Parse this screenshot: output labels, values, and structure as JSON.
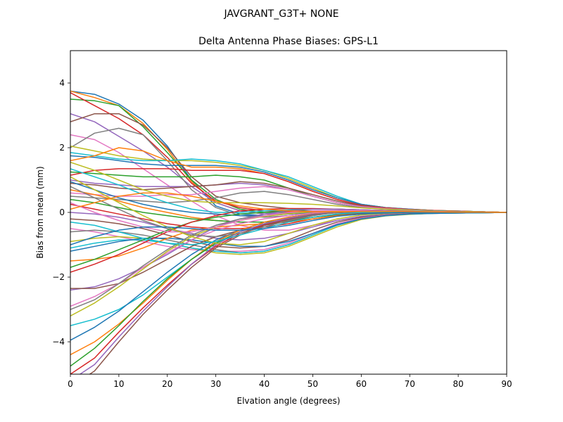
{
  "figure": {
    "suptitle": "JAVGRANT_G3T+   NONE"
  },
  "chart_data": {
    "type": "line",
    "title": "Delta Antenna Phase Biases: GPS-L1",
    "xlabel": "Elvation angle (degrees)",
    "ylabel": "Bias from mean (mm)",
    "xlim": [
      0,
      90
    ],
    "ylim": [
      -5,
      5
    ],
    "xticks": [
      0,
      10,
      20,
      30,
      40,
      50,
      60,
      70,
      80,
      90
    ],
    "yticks": [
      -4,
      -2,
      0,
      2,
      4
    ],
    "xtick_labels": [
      "0",
      "10",
      "20",
      "30",
      "40",
      "50",
      "60",
      "70",
      "80",
      "90"
    ],
    "ytick_labels": [
      "−4",
      "−2",
      "0",
      "2",
      "4"
    ],
    "grid": false,
    "legend": false,
    "x": [
      0,
      5,
      10,
      15,
      20,
      25,
      30,
      35,
      40,
      45,
      50,
      55,
      60,
      65,
      70,
      75,
      80,
      85,
      90
    ],
    "colors": [
      "#1f77b4",
      "#ff7f0e",
      "#2ca02c",
      "#d62728",
      "#9467bd",
      "#8c564b",
      "#e377c2",
      "#7f7f7f",
      "#bcbd22",
      "#17becf"
    ],
    "series": [
      {
        "values": [
          3.75,
          3.65,
          3.35,
          2.85,
          2.05,
          1.0,
          0.2,
          -0.05,
          -0.1,
          -0.05,
          0.0,
          0.02,
          0.05,
          0.05,
          0.04,
          0.03,
          0.02,
          0.01,
          0.0
        ]
      },
      {
        "values": [
          3.75,
          3.55,
          3.3,
          2.75,
          1.95,
          0.95,
          0.3,
          0.05,
          -0.05,
          -0.05,
          0.0,
          0.02,
          0.04,
          0.05,
          0.04,
          0.03,
          0.02,
          0.01,
          0.0
        ]
      },
      {
        "values": [
          3.5,
          3.45,
          3.3,
          2.65,
          1.85,
          1.0,
          0.4,
          0.1,
          0.0,
          0.0,
          0.02,
          0.04,
          0.05,
          0.05,
          0.04,
          0.03,
          0.02,
          0.01,
          0.0
        ]
      },
      {
        "values": [
          3.7,
          3.3,
          2.9,
          2.4,
          1.7,
          0.9,
          0.35,
          0.15,
          0.05,
          0.02,
          0.03,
          0.05,
          0.06,
          0.05,
          0.04,
          0.03,
          0.02,
          0.01,
          0.0
        ]
      },
      {
        "values": [
          3.05,
          2.8,
          2.35,
          1.9,
          1.4,
          0.8,
          0.3,
          0.05,
          -0.05,
          -0.02,
          0.02,
          0.04,
          0.05,
          0.05,
          0.04,
          0.03,
          0.02,
          0.01,
          0.0
        ]
      },
      {
        "values": [
          2.8,
          3.05,
          3.05,
          2.7,
          2.0,
          1.1,
          0.5,
          0.3,
          0.2,
          0.12,
          0.1,
          0.1,
          0.08,
          0.06,
          0.05,
          0.04,
          0.02,
          0.01,
          0.0
        ]
      },
      {
        "values": [
          2.4,
          2.25,
          1.85,
          1.35,
          0.85,
          0.35,
          -0.1,
          -0.4,
          -0.55,
          -0.55,
          -0.4,
          -0.25,
          -0.15,
          -0.1,
          -0.05,
          -0.03,
          -0.02,
          -0.01,
          0.0
        ]
      },
      {
        "values": [
          2.0,
          2.45,
          2.6,
          2.4,
          1.6,
          0.7,
          0.15,
          -0.1,
          -0.15,
          -0.1,
          -0.02,
          0.03,
          0.05,
          0.05,
          0.04,
          0.03,
          0.02,
          0.01,
          0.0
        ]
      },
      {
        "values": [
          2.05,
          1.9,
          1.75,
          1.65,
          1.6,
          1.6,
          1.55,
          1.45,
          1.3,
          1.05,
          0.75,
          0.45,
          0.25,
          0.15,
          0.1,
          0.06,
          0.04,
          0.02,
          0.0
        ]
      },
      {
        "values": [
          1.85,
          1.75,
          1.65,
          1.6,
          1.6,
          1.65,
          1.6,
          1.5,
          1.3,
          1.1,
          0.8,
          0.5,
          0.25,
          0.15,
          0.1,
          0.06,
          0.04,
          0.02,
          0.0
        ]
      },
      {
        "values": [
          1.75,
          1.7,
          1.6,
          1.5,
          1.45,
          1.45,
          1.45,
          1.4,
          1.25,
          1.0,
          0.7,
          0.45,
          0.25,
          0.15,
          0.1,
          0.06,
          0.04,
          0.02,
          0.0
        ]
      },
      {
        "values": [
          1.6,
          1.75,
          2.0,
          1.9,
          1.6,
          1.4,
          1.4,
          1.35,
          1.2,
          0.95,
          0.65,
          0.4,
          0.22,
          0.14,
          0.09,
          0.06,
          0.04,
          0.02,
          0.0
        ]
      },
      {
        "values": [
          1.25,
          1.2,
          1.15,
          1.1,
          1.1,
          1.1,
          1.15,
          1.1,
          1.0,
          0.75,
          0.5,
          0.3,
          0.18,
          0.12,
          0.08,
          0.05,
          0.03,
          0.02,
          0.0
        ]
      },
      {
        "values": [
          1.15,
          1.3,
          1.35,
          1.35,
          1.35,
          1.3,
          1.3,
          1.3,
          1.2,
          0.95,
          0.65,
          0.4,
          0.22,
          0.14,
          0.09,
          0.06,
          0.04,
          0.02,
          0.0
        ]
      },
      {
        "values": [
          1.0,
          0.9,
          0.85,
          0.8,
          0.8,
          0.8,
          0.85,
          0.9,
          0.85,
          0.7,
          0.5,
          0.3,
          0.18,
          0.12,
          0.08,
          0.05,
          0.03,
          0.02,
          0.0
        ]
      },
      {
        "values": [
          0.9,
          0.85,
          0.75,
          0.7,
          0.75,
          0.8,
          0.85,
          0.95,
          0.9,
          0.75,
          0.55,
          0.35,
          0.2,
          0.12,
          0.08,
          0.05,
          0.03,
          0.02,
          0.0
        ]
      },
      {
        "values": [
          0.6,
          0.55,
          0.5,
          0.5,
          0.55,
          0.55,
          0.65,
          0.75,
          0.8,
          0.7,
          0.5,
          0.3,
          0.18,
          0.12,
          0.08,
          0.05,
          0.03,
          0.02,
          0.0
        ]
      },
      {
        "values": [
          0.5,
          0.45,
          0.4,
          0.35,
          0.3,
          0.35,
          0.45,
          0.6,
          0.65,
          0.55,
          0.4,
          0.25,
          0.15,
          0.1,
          0.07,
          0.05,
          0.03,
          0.02,
          0.0
        ]
      },
      {
        "values": [
          1.55,
          1.3,
          1.0,
          0.7,
          0.5,
          0.35,
          0.3,
          0.3,
          0.3,
          0.28,
          0.25,
          0.2,
          0.14,
          0.1,
          0.07,
          0.05,
          0.03,
          0.02,
          0.0
        ]
      },
      {
        "values": [
          1.35,
          1.1,
          0.85,
          0.55,
          0.3,
          0.1,
          0.0,
          0.0,
          0.05,
          0.08,
          0.1,
          0.1,
          0.08,
          0.06,
          0.05,
          0.04,
          0.02,
          0.01,
          0.0
        ]
      },
      {
        "values": [
          0.95,
          0.7,
          0.45,
          0.25,
          0.1,
          0.0,
          -0.05,
          -0.1,
          -0.1,
          -0.05,
          0.0,
          0.03,
          0.05,
          0.05,
          0.04,
          0.03,
          0.02,
          0.01,
          0.0
        ]
      },
      {
        "values": [
          0.7,
          0.55,
          0.35,
          0.15,
          0.0,
          -0.15,
          -0.25,
          -0.3,
          -0.3,
          -0.25,
          -0.15,
          -0.05,
          0.0,
          0.02,
          0.02,
          0.02,
          0.01,
          0.01,
          0.0
        ]
      },
      {
        "values": [
          0.4,
          0.3,
          0.15,
          0.0,
          -0.1,
          -0.2,
          -0.25,
          -0.3,
          -0.3,
          -0.25,
          -0.15,
          -0.08,
          -0.03,
          0.0,
          0.01,
          0.01,
          0.01,
          0.0,
          0.0
        ]
      },
      {
        "values": [
          0.25,
          0.1,
          -0.05,
          -0.2,
          -0.35,
          -0.45,
          -0.5,
          -0.5,
          -0.45,
          -0.35,
          -0.2,
          -0.1,
          -0.05,
          -0.02,
          0.0,
          0.0,
          0.0,
          0.0,
          0.0
        ]
      },
      {
        "values": [
          0.0,
          -0.05,
          -0.15,
          -0.3,
          -0.5,
          -0.65,
          -0.8,
          -0.85,
          -0.8,
          -0.65,
          -0.45,
          -0.25,
          -0.12,
          -0.06,
          -0.03,
          -0.02,
          -0.01,
          -0.01,
          0.0
        ]
      },
      {
        "values": [
          -0.2,
          -0.25,
          -0.35,
          -0.5,
          -0.7,
          -0.9,
          -1.05,
          -1.1,
          -1.05,
          -0.85,
          -0.55,
          -0.3,
          -0.15,
          -0.08,
          -0.04,
          -0.02,
          -0.01,
          -0.01,
          0.0
        ]
      },
      {
        "values": [
          -0.5,
          -0.6,
          -0.75,
          -0.9,
          -1.05,
          -1.15,
          -1.2,
          -1.2,
          -1.15,
          -0.95,
          -0.65,
          -0.35,
          -0.18,
          -0.09,
          -0.05,
          -0.03,
          -0.02,
          -0.01,
          0.0
        ]
      },
      {
        "values": [
          -0.6,
          -0.55,
          -0.6,
          -0.7,
          -0.85,
          -1.0,
          -1.15,
          -1.25,
          -1.2,
          -1.0,
          -0.7,
          -0.4,
          -0.2,
          -0.1,
          -0.05,
          -0.03,
          -0.02,
          -0.01,
          0.0
        ]
      },
      {
        "values": [
          -0.9,
          -0.8,
          -0.75,
          -0.8,
          -0.95,
          -1.1,
          -1.25,
          -1.3,
          -1.25,
          -1.05,
          -0.75,
          -0.45,
          -0.22,
          -0.11,
          -0.06,
          -0.03,
          -0.02,
          -0.01,
          0.0
        ]
      },
      {
        "values": [
          -1.1,
          -0.95,
          -0.85,
          -0.85,
          -0.95,
          -1.1,
          -1.2,
          -1.25,
          -1.2,
          -1.0,
          -0.7,
          -0.4,
          -0.2,
          -0.1,
          -0.05,
          -0.03,
          -0.02,
          -0.01,
          0.0
        ]
      },
      {
        "values": [
          -1.2,
          -1.05,
          -0.9,
          -0.8,
          -0.8,
          -0.85,
          -0.95,
          -1.05,
          -1.05,
          -0.9,
          -0.65,
          -0.38,
          -0.2,
          -0.1,
          -0.05,
          -0.03,
          -0.02,
          -0.01,
          0.0
        ]
      },
      {
        "values": [
          -1.5,
          -1.45,
          -1.35,
          -1.1,
          -0.8,
          -0.55,
          -0.45,
          -0.4,
          -0.35,
          -0.3,
          -0.2,
          -0.1,
          -0.05,
          -0.02,
          0.0,
          0.0,
          0.0,
          0.0,
          0.0
        ]
      },
      {
        "values": [
          -1.7,
          -1.45,
          -1.15,
          -0.85,
          -0.55,
          -0.3,
          -0.15,
          -0.05,
          0.0,
          0.05,
          0.05,
          0.05,
          0.05,
          0.04,
          0.03,
          0.02,
          0.01,
          0.01,
          0.0
        ]
      },
      {
        "values": [
          -1.85,
          -1.6,
          -1.3,
          -0.95,
          -0.6,
          -0.3,
          -0.1,
          0.05,
          0.1,
          0.12,
          0.12,
          0.1,
          0.08,
          0.06,
          0.04,
          0.03,
          0.02,
          0.01,
          0.0
        ]
      },
      {
        "values": [
          -2.4,
          -2.3,
          -2.05,
          -1.7,
          -1.3,
          -0.85,
          -0.45,
          -0.2,
          -0.05,
          0.05,
          0.1,
          0.1,
          0.08,
          0.06,
          0.04,
          0.03,
          0.02,
          0.01,
          0.0
        ]
      },
      {
        "values": [
          -2.35,
          -2.35,
          -2.2,
          -1.85,
          -1.45,
          -1.05,
          -0.75,
          -0.55,
          -0.4,
          -0.28,
          -0.15,
          -0.06,
          -0.02,
          0.0,
          0.01,
          0.01,
          0.01,
          0.0,
          0.0
        ]
      },
      {
        "values": [
          -2.9,
          -2.6,
          -2.2,
          -1.7,
          -1.25,
          -0.85,
          -0.55,
          -0.35,
          -0.2,
          -0.1,
          -0.02,
          0.03,
          0.05,
          0.05,
          0.04,
          0.03,
          0.02,
          0.01,
          0.0
        ]
      },
      {
        "values": [
          -3.0,
          -2.7,
          -2.2,
          -1.65,
          -1.15,
          -0.7,
          -0.4,
          -0.2,
          -0.1,
          -0.02,
          0.04,
          0.06,
          0.06,
          0.05,
          0.04,
          0.03,
          0.02,
          0.01,
          0.0
        ]
      },
      {
        "values": [
          -3.2,
          -2.8,
          -2.3,
          -1.75,
          -1.2,
          -0.75,
          -0.45,
          -0.25,
          -0.12,
          -0.04,
          0.02,
          0.05,
          0.05,
          0.05,
          0.04,
          0.03,
          0.02,
          0.01,
          0.0
        ]
      },
      {
        "values": [
          -3.5,
          -3.3,
          -3.0,
          -2.55,
          -2.0,
          -1.45,
          -0.95,
          -0.6,
          -0.35,
          -0.18,
          -0.06,
          0.0,
          0.03,
          0.04,
          0.03,
          0.02,
          0.02,
          0.01,
          0.0
        ]
      },
      {
        "values": [
          -3.95,
          -3.55,
          -3.05,
          -2.45,
          -1.85,
          -1.3,
          -0.85,
          -0.55,
          -0.3,
          -0.15,
          -0.05,
          0.0,
          0.03,
          0.03,
          0.03,
          0.02,
          0.01,
          0.01,
          0.0
        ]
      },
      {
        "values": [
          -4.4,
          -4.0,
          -3.45,
          -2.8,
          -2.1,
          -1.45,
          -0.9,
          -0.55,
          -0.3,
          -0.15,
          -0.05,
          0.0,
          0.03,
          0.03,
          0.03,
          0.02,
          0.01,
          0.01,
          0.0
        ]
      },
      {
        "values": [
          -4.75,
          -4.2,
          -3.5,
          -2.75,
          -2.05,
          -1.45,
          -0.95,
          -0.6,
          -0.35,
          -0.18,
          -0.06,
          0.0,
          0.03,
          0.03,
          0.03,
          0.02,
          0.01,
          0.01,
          0.0
        ]
      },
      {
        "values": [
          -5.0,
          -4.5,
          -3.7,
          -2.95,
          -2.25,
          -1.6,
          -1.05,
          -0.65,
          -0.38,
          -0.2,
          -0.07,
          0.0,
          0.02,
          0.03,
          0.03,
          0.02,
          0.01,
          0.01,
          0.0
        ]
      },
      {
        "values": [
          -5.2,
          -4.7,
          -3.85,
          -3.05,
          -2.3,
          -1.6,
          -1.0,
          -0.6,
          -0.35,
          -0.18,
          -0.06,
          0.0,
          0.02,
          0.03,
          0.03,
          0.02,
          0.01,
          0.01,
          0.0
        ]
      },
      {
        "values": [
          -5.4,
          -4.9,
          -4.0,
          -3.15,
          -2.4,
          -1.7,
          -1.1,
          -0.7,
          -0.4,
          -0.22,
          -0.08,
          -0.01,
          0.02,
          0.03,
          0.03,
          0.02,
          0.01,
          0.01,
          0.0
        ]
      },
      {
        "values": [
          0.3,
          0.0,
          -0.25,
          -0.45,
          -0.6,
          -0.6,
          -0.45,
          -0.25,
          -0.1,
          0.0,
          0.05,
          0.06,
          0.06,
          0.05,
          0.04,
          0.03,
          0.02,
          0.01,
          0.0
        ]
      },
      {
        "values": [
          0.8,
          0.45,
          0.1,
          -0.25,
          -0.5,
          -0.7,
          -0.75,
          -0.65,
          -0.45,
          -0.25,
          -0.1,
          0.0,
          0.03,
          0.04,
          0.03,
          0.02,
          0.02,
          0.01,
          0.0
        ]
      },
      {
        "values": [
          1.1,
          0.7,
          0.3,
          -0.1,
          -0.45,
          -0.75,
          -0.95,
          -1.0,
          -0.9,
          -0.65,
          -0.4,
          -0.2,
          -0.08,
          -0.03,
          0.0,
          0.0,
          0.0,
          0.0,
          0.0
        ]
      },
      {
        "values": [
          -0.3,
          -0.4,
          -0.6,
          -0.8,
          -0.95,
          -1.0,
          -0.9,
          -0.7,
          -0.5,
          -0.3,
          -0.15,
          -0.05,
          0.0,
          0.02,
          0.02,
          0.02,
          0.01,
          0.01,
          0.0
        ]
      },
      {
        "values": [
          -1.0,
          -0.75,
          -0.55,
          -0.45,
          -0.45,
          -0.5,
          -0.55,
          -0.55,
          -0.5,
          -0.4,
          -0.25,
          -0.12,
          -0.05,
          -0.02,
          0.0,
          0.0,
          0.0,
          0.0,
          0.0
        ]
      },
      {
        "values": [
          0.1,
          0.3,
          0.5,
          0.6,
          0.6,
          0.5,
          0.35,
          0.2,
          0.1,
          0.05,
          0.02,
          0.02,
          0.03,
          0.03,
          0.03,
          0.02,
          0.01,
          0.01,
          0.0
        ]
      }
    ]
  }
}
